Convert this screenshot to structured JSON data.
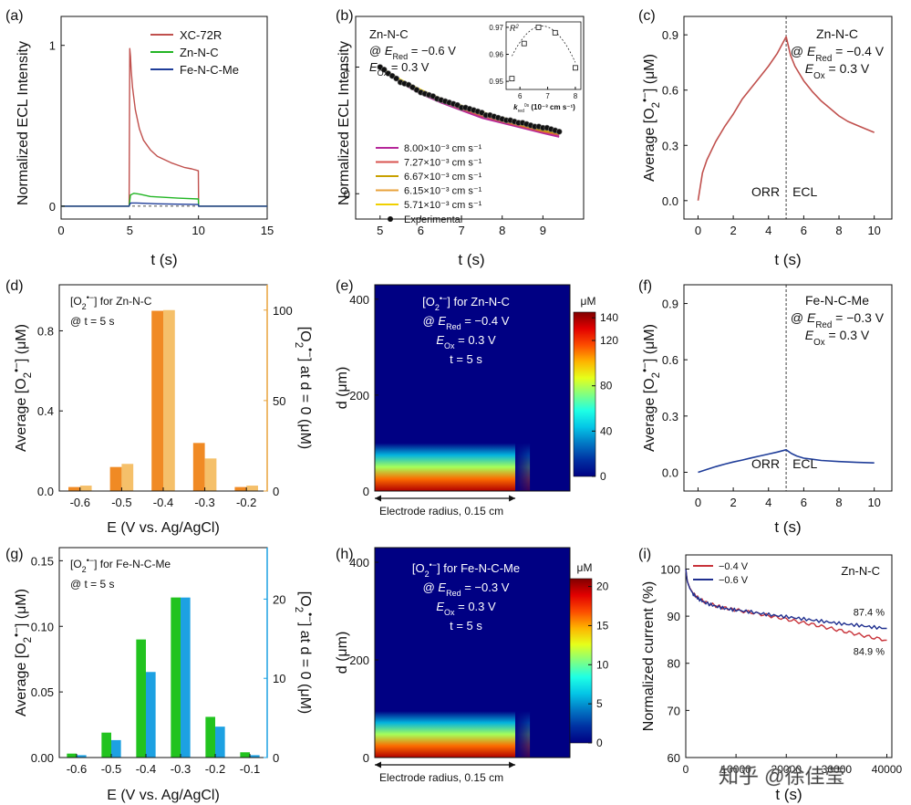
{
  "watermark": "知乎 @徐佳莹",
  "chart_data": [
    {
      "id": "a",
      "panel_label": "(a)",
      "type": "line",
      "xlabel": "t (s)",
      "ylabel": "Normalized ECL Intensity",
      "xlim": [
        0,
        15
      ],
      "ylim": [
        -0.08,
        1.18
      ],
      "xticks": [
        "0",
        "5",
        "10",
        "15"
      ],
      "yticks": [
        "0",
        "1"
      ],
      "series": [
        {
          "name": "XC-72R",
          "color": "#c0504d",
          "x": [
            0,
            4.95,
            5.0,
            5.05,
            5.1,
            5.2,
            5.4,
            5.7,
            6.0,
            6.5,
            7.0,
            7.5,
            8.0,
            8.5,
            9.0,
            9.5,
            9.99,
            10.01,
            10.2,
            15
          ],
          "y": [
            0,
            0,
            0.98,
            0.93,
            0.85,
            0.74,
            0.6,
            0.48,
            0.41,
            0.35,
            0.31,
            0.29,
            0.27,
            0.255,
            0.24,
            0.232,
            0.22,
            0.0,
            0.0,
            0
          ]
        },
        {
          "name": "Zn-N-C",
          "color": "#22b524",
          "x": [
            0,
            4.95,
            5.05,
            5.3,
            5.7,
            6.5,
            7.5,
            8.5,
            9.99,
            10.01,
            15
          ],
          "y": [
            0,
            0,
            0.07,
            0.08,
            0.075,
            0.06,
            0.055,
            0.05,
            0.045,
            0.0,
            0
          ]
        },
        {
          "name": "Fe-N-C-Me",
          "color": "#1f3d99",
          "x": [
            0,
            4.95,
            5.05,
            5.5,
            7.0,
            9.99,
            10.01,
            15
          ],
          "y": [
            0,
            0,
            0.02,
            0.02,
            0.015,
            0.01,
            0.0,
            0
          ]
        }
      ]
    },
    {
      "id": "b",
      "panel_label": "(b)",
      "type": "line",
      "xlabel": "t (s)",
      "ylabel": "Normalized ECL Intensity",
      "xlim": [
        4.4,
        10.0
      ],
      "ylim": [
        -0.2,
        1.4
      ],
      "xticks": [
        "5",
        "6",
        "7",
        "8",
        "9"
      ],
      "yticks": [
        "0",
        "1"
      ],
      "annotations": {
        "material": "Zn-N-C",
        "e_red_prefix": "@ ",
        "e_red_symbol": "E",
        "e_red_sub": "Red",
        "e_red_value": " = −0.6 V",
        "e_ox_symbol": "E",
        "e_ox_sub": "Ox",
        "e_ox_value": " = 0.3 V"
      },
      "x": [
        5.0,
        5.5,
        6.0,
        6.5,
        7.0,
        7.5,
        8.0,
        8.5,
        9.0,
        9.4
      ],
      "series": [
        {
          "name": "8.00×10⁻³ cm s⁻¹",
          "color": "#b5279a",
          "y": [
            1.0,
            0.88,
            0.79,
            0.72,
            0.66,
            0.6,
            0.56,
            0.52,
            0.48,
            0.45
          ]
        },
        {
          "name": "7.27×10⁻³ cm s⁻¹",
          "color": "#d9534f",
          "y": [
            1.0,
            0.885,
            0.8,
            0.73,
            0.67,
            0.615,
            0.57,
            0.53,
            0.49,
            0.465
          ]
        },
        {
          "name": "6.67×10⁻³ cm s⁻¹",
          "color": "#c8a000",
          "y": [
            1.0,
            0.89,
            0.81,
            0.74,
            0.68,
            0.625,
            0.58,
            0.54,
            0.5,
            0.475
          ]
        },
        {
          "name": "6.15×10⁻³ cm s⁻¹",
          "color": "#e8a33c",
          "y": [
            1.0,
            0.895,
            0.815,
            0.745,
            0.685,
            0.635,
            0.59,
            0.55,
            0.51,
            0.485
          ]
        },
        {
          "name": "5.71×10⁻³ cm s⁻¹",
          "color": "#f0d000",
          "y": [
            1.0,
            0.9,
            0.82,
            0.75,
            0.695,
            0.645,
            0.6,
            0.56,
            0.52,
            0.495
          ]
        }
      ],
      "experimental": {
        "name": "Experimental",
        "x": [
          5.0,
          5.1,
          5.2,
          5.3,
          5.4,
          5.5,
          5.6,
          5.7,
          5.8,
          5.9,
          6.0,
          6.1,
          6.2,
          6.3,
          6.4,
          6.5,
          6.6,
          6.7,
          6.8,
          6.9,
          7.0,
          7.1,
          7.2,
          7.3,
          7.4,
          7.5,
          7.6,
          7.7,
          7.8,
          7.9,
          8.0,
          8.1,
          8.2,
          8.3,
          8.4,
          8.5,
          8.6,
          8.7,
          8.8,
          8.9,
          9.0,
          9.1,
          9.2,
          9.3,
          9.4
        ],
        "y": [
          1.0,
          0.98,
          0.95,
          0.93,
          0.91,
          0.88,
          0.87,
          0.86,
          0.84,
          0.82,
          0.8,
          0.79,
          0.78,
          0.77,
          0.75,
          0.74,
          0.73,
          0.72,
          0.71,
          0.7,
          0.68,
          0.68,
          0.67,
          0.66,
          0.65,
          0.64,
          0.62,
          0.62,
          0.61,
          0.6,
          0.59,
          0.58,
          0.58,
          0.57,
          0.56,
          0.56,
          0.55,
          0.54,
          0.53,
          0.53,
          0.52,
          0.52,
          0.51,
          0.5,
          0.49
        ]
      },
      "inset": {
        "type": "scatter",
        "ylabel": "R²",
        "xlabel": "k_red^0s (10⁻³ cm s⁻¹)",
        "xlabel_symbol": "k",
        "xlabel_sub": "red",
        "xlabel_sup": "0s",
        "xlabel_units": " (10⁻³ cm s⁻¹)",
        "ylabel_symbol": "R",
        "ylabel_sup": "2",
        "xlim": [
          5.5,
          8.2
        ],
        "ylim": [
          0.947,
          0.972
        ],
        "xticks": [
          "6",
          "7",
          "8"
        ],
        "yticks": [
          "0.95",
          "0.96",
          "0.97"
        ],
        "x": [
          5.71,
          6.15,
          6.67,
          7.27,
          8.0
        ],
        "y": [
          0.951,
          0.964,
          0.97,
          0.968,
          0.955
        ]
      }
    },
    {
      "id": "c",
      "panel_label": "(c)",
      "type": "line",
      "xlabel": "t (s)",
      "ylabel": "Average [O₂•⁻] (μM)",
      "ylabel_parts": {
        "prefix": "Average [O",
        "sub": "2",
        "sup": "•−",
        "suffix": "] (μM)"
      },
      "xlim": [
        -0.8,
        11
      ],
      "ylim": [
        -0.1,
        1.0
      ],
      "xticks": [
        "0",
        "2",
        "4",
        "6",
        "8",
        "10"
      ],
      "yticks": [
        "0.0",
        "0.3",
        "0.6",
        "0.9"
      ],
      "divider_x": 5,
      "region_labels": [
        "ORR",
        "ECL"
      ],
      "annotations": {
        "material": "Zn-N-C",
        "e_red_prefix": "@ ",
        "e_red_symbol": "E",
        "e_red_sub": "Red",
        "e_red_value": " = −0.4 V",
        "e_ox_symbol": "E",
        "e_ox_sub": "Ox",
        "e_ox_value": " = 0.3 V"
      },
      "series": [
        {
          "name": "Zn-N-C",
          "color": "#c0504d",
          "x": [
            0,
            0.25,
            0.5,
            1,
            1.5,
            2,
            2.5,
            3,
            3.5,
            4,
            4.5,
            5,
            5.25,
            5.5,
            6,
            6.5,
            7,
            7.5,
            8,
            8.5,
            9,
            9.5,
            10
          ],
          "y": [
            0,
            0.15,
            0.22,
            0.32,
            0.4,
            0.47,
            0.55,
            0.61,
            0.67,
            0.73,
            0.8,
            0.89,
            0.79,
            0.73,
            0.65,
            0.59,
            0.54,
            0.5,
            0.46,
            0.43,
            0.41,
            0.39,
            0.37
          ]
        }
      ]
    },
    {
      "id": "d",
      "panel_label": "(d)",
      "type": "bar",
      "xlabel": "E (V vs. Ag/AgCl)",
      "ylabel": "Average [O₂•⁻] (μM)",
      "ylabel_parts": {
        "prefix": "Average [O",
        "sub": "2",
        "sup": "•−",
        "suffix": "] (μM)"
      },
      "ylabel_right": "[O₂•⁻] at d = 0 (μM)",
      "ylabel_right_parts": {
        "prefix": "[O",
        "sub": "2",
        "sup": "•−",
        "suffix": "] at d = 0 (μM)"
      },
      "title": "[O₂•⁻] for Zn-N-C",
      "title_parts": {
        "prefix": "[O",
        "sub": "2",
        "sup": "•−",
        "suffix": "] for Zn-N-C"
      },
      "subtitle": "@ t = 5 s",
      "categories": [
        "-0.6",
        "-0.5",
        "-0.4",
        "-0.3",
        "-0.2"
      ],
      "ylim": [
        0,
        1.03
      ],
      "ylim_right": [
        0,
        114
      ],
      "yticks": [
        "0.0",
        "0.4",
        "0.8"
      ],
      "yticks_right": [
        "0",
        "50",
        "100"
      ],
      "right_axis_color": "#e8a33c",
      "series": [
        {
          "name": "Average",
          "axis": "left",
          "color": "#f08a24",
          "values": [
            0.02,
            0.12,
            0.9,
            0.24,
            0.02
          ]
        },
        {
          "name": "At d = 0",
          "axis": "right",
          "color": "#f5c06a",
          "values": [
            3,
            15,
            100,
            18,
            3
          ]
        }
      ]
    },
    {
      "id": "e",
      "panel_label": "(e)",
      "type": "heatmap",
      "ylabel": "d (μm)",
      "xlabel_note": "Electrode radius, 0.15 cm",
      "ylim": [
        0,
        430
      ],
      "yticks": [
        "0",
        "200",
        "400"
      ],
      "colorbar": {
        "unit": "μM",
        "min": 0,
        "max": 145,
        "ticks": [
          "0",
          "40",
          "80",
          "120",
          "140"
        ]
      },
      "annotations": {
        "title_prefix": "[O",
        "title_sub": "2",
        "title_sup": "•−",
        "title_suffix": "] for Zn-N-C",
        "e_red_prefix": "@ ",
        "e_red_symbol": "E",
        "e_red_sub": "Red",
        "e_red_value": " = −0.4 V",
        "e_ox_symbol": "E",
        "e_ox_sub": "Ox",
        "e_ox_value": " = 0.3 V",
        "time": "t = 5 s"
      },
      "diffusion_thickness": 100
    },
    {
      "id": "f",
      "panel_label": "(f)",
      "type": "line",
      "xlabel": "t (s)",
      "ylabel": "Average [O₂•⁻] (μM)",
      "ylabel_parts": {
        "prefix": "Average [O",
        "sub": "2",
        "sup": "•−",
        "suffix": "] (μM)"
      },
      "xlim": [
        -0.8,
        11
      ],
      "ylim": [
        -0.1,
        1.0
      ],
      "xticks": [
        "0",
        "2",
        "4",
        "6",
        "8",
        "10"
      ],
      "yticks": [
        "0.0",
        "0.3",
        "0.6",
        "0.9"
      ],
      "divider_x": 5,
      "region_labels": [
        "ORR",
        "ECL"
      ],
      "annotations": {
        "material": "Fe-N-C-Me",
        "e_red_prefix": "@ ",
        "e_red_symbol": "E",
        "e_red_sub": "Red",
        "e_red_value": " = −0.3 V",
        "e_ox_symbol": "E",
        "e_ox_sub": "Ox",
        "e_ox_value": " = 0.3 V"
      },
      "series": [
        {
          "name": "Fe-N-C-Me",
          "color": "#1f3d99",
          "x": [
            0,
            0.5,
            1,
            1.5,
            2,
            2.5,
            3,
            3.5,
            4,
            4.5,
            5,
            5.3,
            5.6,
            6,
            7,
            8,
            9,
            10
          ],
          "y": [
            0,
            0.015,
            0.03,
            0.043,
            0.055,
            0.065,
            0.076,
            0.087,
            0.097,
            0.108,
            0.12,
            0.1,
            0.087,
            0.075,
            0.063,
            0.057,
            0.053,
            0.05
          ]
        }
      ]
    },
    {
      "id": "g",
      "panel_label": "(g)",
      "type": "bar",
      "xlabel": "E (V vs. Ag/AgCl)",
      "ylabel": "Average [O₂•⁻] (μM)",
      "ylabel_parts": {
        "prefix": "Average [O",
        "sub": "2",
        "sup": "•−",
        "suffix": "] (μM)"
      },
      "ylabel_right": "[O₂•⁻] at d = 0 (μM)",
      "ylabel_right_parts": {
        "prefix": "[O",
        "sub": "2",
        "sup": "•−",
        "suffix": "] at d = 0 (μM)"
      },
      "title": "[O₂•⁻] for Fe-N-C-Me",
      "title_parts": {
        "prefix": "[O",
        "sub": "2",
        "sup": "•−",
        "suffix": "] for Fe-N-C-Me"
      },
      "subtitle": "@ t = 5 s",
      "categories": [
        "-0.6",
        "-0.5",
        "-0.4",
        "-0.3",
        "-0.2",
        "-0.1"
      ],
      "ylim": [
        0,
        0.16
      ],
      "ylim_right": [
        0,
        26.5
      ],
      "yticks": [
        "0.00",
        "0.05",
        "0.10",
        "0.15"
      ],
      "yticks_right": [
        "0",
        "10",
        "20"
      ],
      "right_axis_color": "#1da1e2",
      "series": [
        {
          "name": "Average",
          "axis": "left",
          "color": "#22c31f",
          "values": [
            0.003,
            0.019,
            0.09,
            0.122,
            0.031,
            0.004
          ]
        },
        {
          "name": "At d = 0",
          "axis": "right",
          "color": "#1da1e2",
          "values": [
            0.3,
            2.2,
            10.8,
            20.2,
            3.9,
            0.3
          ]
        }
      ]
    },
    {
      "id": "h",
      "panel_label": "(h)",
      "type": "heatmap",
      "ylabel": "d (μm)",
      "xlabel_note": "Electrode radius, 0.15 cm",
      "ylim": [
        0,
        430
      ],
      "yticks": [
        "0",
        "200",
        "400"
      ],
      "colorbar": {
        "unit": "μM",
        "min": 0,
        "max": 21,
        "ticks": [
          "0",
          "5",
          "10",
          "15",
          "20"
        ]
      },
      "annotations": {
        "title_prefix": "[O",
        "title_sub": "2",
        "title_sup": "•−",
        "title_suffix": "] for Fe-N-C-Me",
        "e_red_prefix": "@ ",
        "e_red_symbol": "E",
        "e_red_sub": "Red",
        "e_red_value": " = −0.3 V",
        "e_ox_symbol": "E",
        "e_ox_sub": "Ox",
        "e_ox_value": " = 0.3 V",
        "time": "t = 5 s"
      },
      "diffusion_thickness": 95
    },
    {
      "id": "i",
      "panel_label": "(i)",
      "type": "line",
      "xlabel": "t (s)",
      "ylabel": "Normalized current (%)",
      "xlim": [
        0,
        41000
      ],
      "ylim": [
        60,
        103
      ],
      "xticks": [
        "0",
        "10000",
        "20000",
        "30000",
        "40000"
      ],
      "yticks": [
        "60",
        "70",
        "80",
        "90",
        "100"
      ],
      "material": "Zn-N-C",
      "series": [
        {
          "name": "−0.4 V",
          "color": "#c8333a",
          "end_label": "84.9 %",
          "x": [
            0,
            300,
            800,
            1500,
            2500,
            4000,
            6000,
            8000,
            10000,
            13000,
            16000,
            19000,
            22000,
            25000,
            28000,
            31000,
            34000,
            37000,
            40000
          ],
          "y": [
            100,
            97.5,
            96,
            94.8,
            93.8,
            92.9,
            92.2,
            91.7,
            91.3,
            90.8,
            90.2,
            89.6,
            88.9,
            88.3,
            87.6,
            86.9,
            86.2,
            85.5,
            84.9
          ]
        },
        {
          "name": "−0.6 V",
          "color": "#1f2f8f",
          "end_label": "87.4 %",
          "x": [
            0,
            300,
            800,
            1500,
            2500,
            4000,
            6000,
            8000,
            10000,
            13000,
            16000,
            19000,
            22000,
            25000,
            28000,
            31000,
            34000,
            37000,
            40000
          ],
          "y": [
            100,
            97.4,
            95.9,
            94.7,
            93.7,
            92.8,
            92.1,
            91.6,
            91.3,
            90.9,
            90.4,
            90.0,
            89.6,
            89.2,
            88.8,
            88.4,
            88.1,
            87.7,
            87.4
          ]
        }
      ]
    }
  ]
}
